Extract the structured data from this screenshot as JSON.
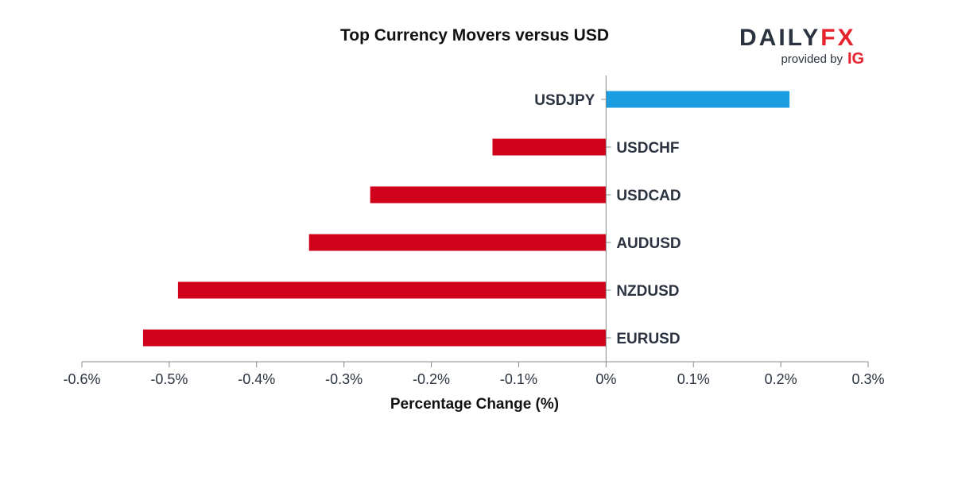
{
  "chart_data": {
    "type": "bar",
    "orientation": "horizontal",
    "title": "Top Currency Movers versus USD",
    "xlabel": "Percentage Change (%)",
    "ylabel": "",
    "xlim": [
      -0.6,
      0.3
    ],
    "x_ticks": [
      -0.6,
      -0.5,
      -0.4,
      -0.3,
      -0.2,
      -0.1,
      0,
      0.1,
      0.2,
      0.3
    ],
    "x_tick_labels": [
      "-0.6%",
      "-0.5%",
      "-0.4%",
      "-0.3%",
      "-0.2%",
      "-0.1%",
      "0%",
      "0.1%",
      "0.2%",
      "0.3%"
    ],
    "categories": [
      "USDJPY",
      "USDCHF",
      "USDCAD",
      "AUDUSD",
      "NZDUSD",
      "EURUSD"
    ],
    "values": [
      0.21,
      -0.13,
      -0.27,
      -0.34,
      -0.49,
      -0.53
    ],
    "grid": false,
    "legend": "none"
  },
  "colors": {
    "positive": "#1b9de2",
    "negative": "#d0021b",
    "axis": "#888888",
    "text": "#2b3340"
  },
  "branding": {
    "logo_part1": "DAILY",
    "logo_part2": "FX",
    "provided_by": "provided by",
    "ig": "IG",
    "logo_color1": "#2b3340",
    "logo_color2": "#e8222d"
  }
}
